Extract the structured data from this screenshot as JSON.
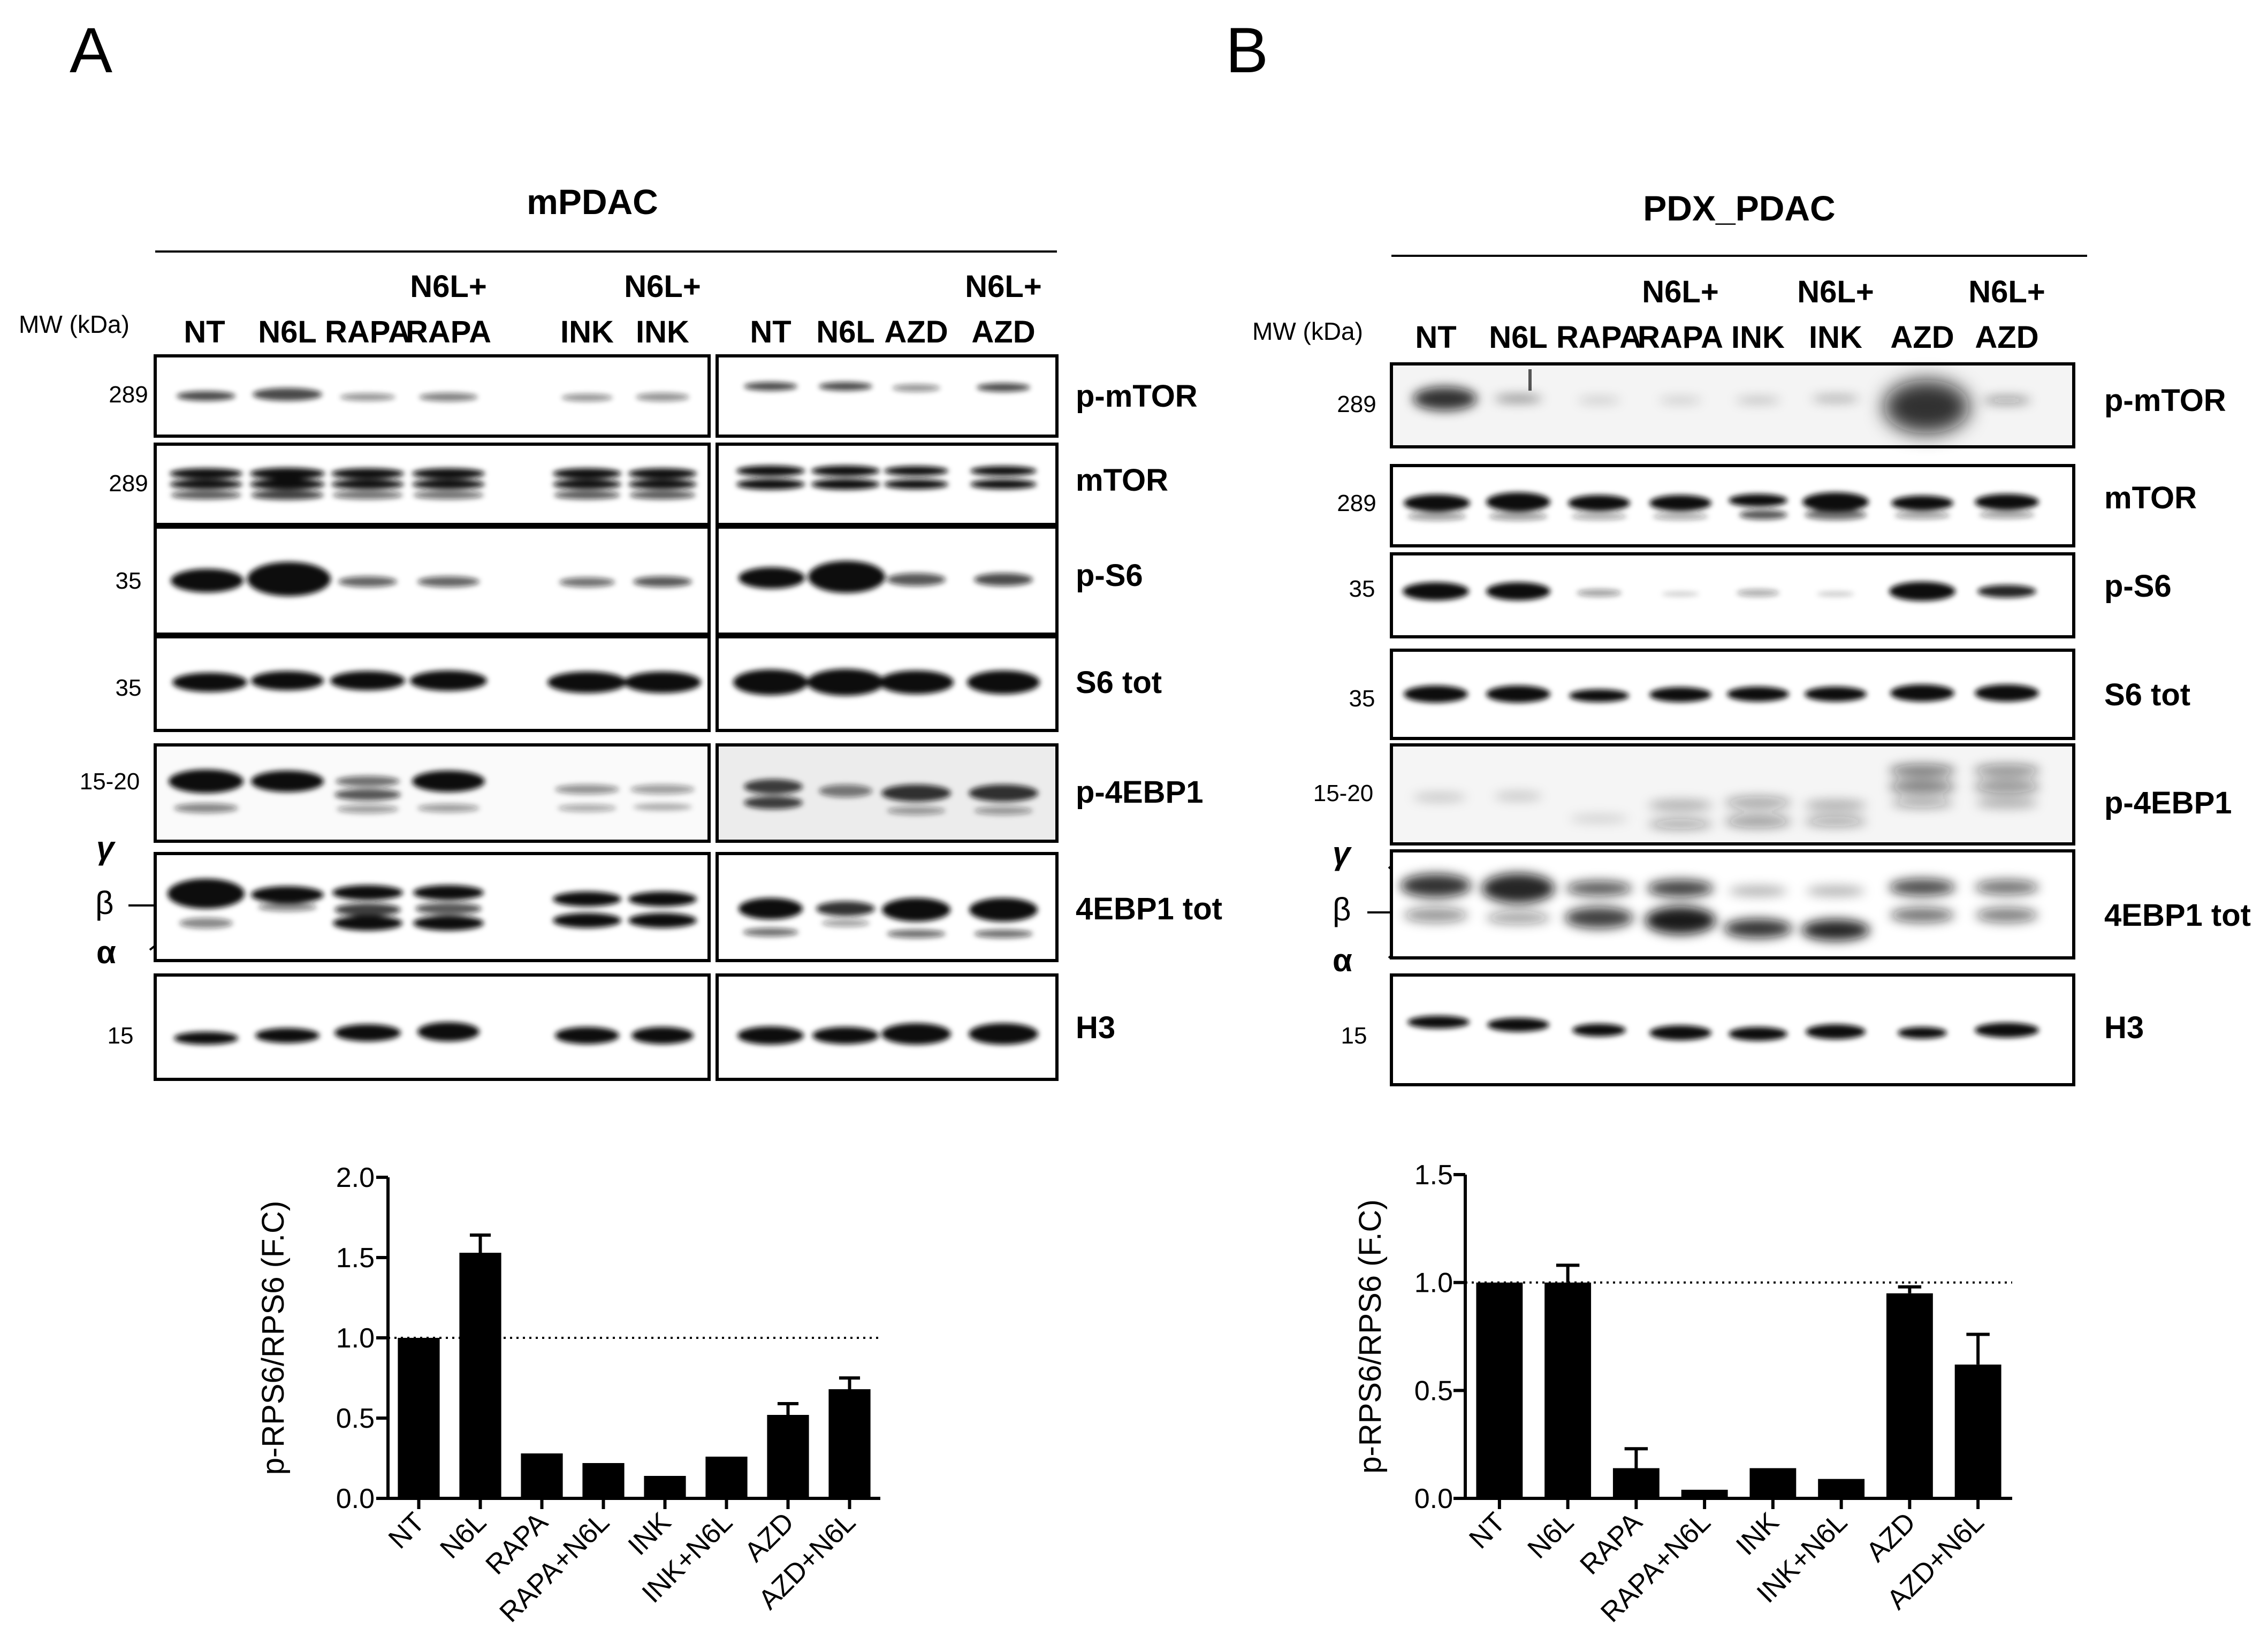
{
  "panels": [
    {
      "letter": "A",
      "title": "MW (kDa)",
      "sample": "mPDAC",
      "gel_groups": [
        {
          "lanes": [
            {
              "top": "",
              "bottom": "NT"
            },
            {
              "top": "",
              "bottom": "N6L"
            },
            {
              "top": "",
              "bottom": "RAPA"
            },
            {
              "top": "N6L+",
              "bottom": "RAPA"
            },
            {
              "top": "",
              "bottom": "INK"
            },
            {
              "top": "N6L+",
              "bottom": "INK"
            }
          ]
        },
        {
          "lanes": [
            {
              "top": "",
              "bottom": "NT"
            },
            {
              "top": "",
              "bottom": "N6L"
            },
            {
              "top": "",
              "bottom": "AZD"
            },
            {
              "top": "N6L+",
              "bottom": "AZD"
            }
          ]
        }
      ],
      "blots": [
        {
          "mw": "289",
          "label": "p-mTOR"
        },
        {
          "mw": "289",
          "label": "mTOR"
        },
        {
          "mw": "35",
          "label": "p-S6"
        },
        {
          "mw": "35",
          "label": "S6 tot"
        },
        {
          "mw": "15-20",
          "label": "p-4EBP1"
        },
        {
          "mw": "",
          "label": "4EBP1 tot"
        },
        {
          "mw": "15",
          "label": "H3"
        }
      ],
      "isoforms": [
        "γ",
        "β",
        "α"
      ]
    },
    {
      "letter": "B",
      "title": "MW (kDa)",
      "sample": "PDX_PDAC",
      "gel_groups": [
        {
          "lanes": [
            {
              "top": "",
              "bottom": "NT"
            },
            {
              "top": "",
              "bottom": "N6L"
            },
            {
              "top": "",
              "bottom": "RAPA"
            },
            {
              "top": "N6L+",
              "bottom": "RAPA"
            },
            {
              "top": "",
              "bottom": "INK"
            },
            {
              "top": "N6L+",
              "bottom": "INK"
            },
            {
              "top": "",
              "bottom": "AZD"
            },
            {
              "top": "N6L+",
              "bottom": "AZD"
            }
          ]
        }
      ],
      "blots": [
        {
          "mw": "289",
          "label": "p-mTOR"
        },
        {
          "mw": "289",
          "label": "mTOR"
        },
        {
          "mw": "35",
          "label": "p-S6"
        },
        {
          "mw": "35",
          "label": "S6 tot"
        },
        {
          "mw": "15-20",
          "label": "p-4EBP1"
        },
        {
          "mw": "",
          "label": "4EBP1 tot"
        },
        {
          "mw": "15",
          "label": "H3"
        }
      ],
      "isoforms": [
        "γ",
        "β",
        "α"
      ]
    }
  ],
  "chart_data": [
    {
      "type": "bar",
      "panel": "A",
      "categories": [
        "NT",
        "N6L",
        "RAPA",
        "RAPA+N6L",
        "INK",
        "INK+N6L",
        "AZD",
        "AZD+N6L"
      ],
      "values": [
        1.0,
        1.53,
        0.28,
        0.22,
        0.14,
        0.26,
        0.52,
        0.68
      ],
      "errors": [
        0.0,
        0.11,
        0.0,
        0.0,
        0.0,
        0.0,
        0.07,
        0.07
      ],
      "ylabel": "p-RPS6/RPS6 (F.C)",
      "xlabel": "",
      "ylim": [
        0,
        2.0
      ],
      "yticks": [
        "0.0",
        "0.5",
        "1.0",
        "1.5",
        "2.0"
      ],
      "reference_line": 1.0,
      "bar_color": "#000000"
    },
    {
      "type": "bar",
      "panel": "B",
      "categories": [
        "NT",
        "N6L",
        "RAPA",
        "RAPA+N6L",
        "INK",
        "INK+N6L",
        "AZD",
        "AZD+N6L"
      ],
      "values": [
        1.0,
        1.0,
        0.14,
        0.04,
        0.14,
        0.09,
        0.95,
        0.62
      ],
      "errors": [
        0.0,
        0.08,
        0.09,
        0.0,
        0.0,
        0.0,
        0.03,
        0.14
      ],
      "ylabel": "p-RPS6/RPS6 (F.C)",
      "xlabel": "",
      "ylim": [
        0,
        1.5
      ],
      "yticks": [
        "0.0",
        "0.5",
        "1.0",
        "1.5"
      ],
      "reference_line": 1.0,
      "bar_color": "#000000"
    }
  ]
}
